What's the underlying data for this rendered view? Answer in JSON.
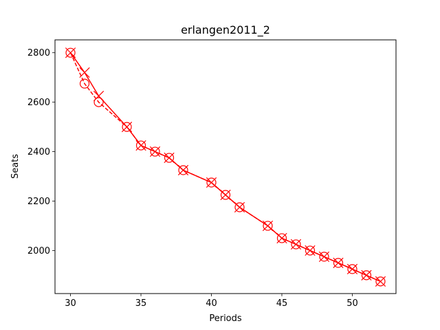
{
  "chart_data": {
    "type": "line",
    "title": "erlangen2011_2",
    "xlabel": "Periods",
    "ylabel": "Seats",
    "xlim": [
      28.9,
      53.1
    ],
    "ylim": [
      1826,
      2852
    ],
    "xticks": [
      30,
      35,
      40,
      45,
      50
    ],
    "yticks": [
      2000,
      2200,
      2400,
      2600,
      2800
    ],
    "grid": false,
    "legend": false,
    "color": "#ff0000",
    "series": [
      {
        "style": "solid",
        "marker": "x",
        "x": [
          30,
          31,
          32,
          34,
          35,
          36,
          37,
          38,
          40,
          41,
          42,
          44,
          45,
          46,
          47,
          48,
          49,
          50,
          51,
          52
        ],
        "y": [
          2800,
          2720,
          2625,
          2500,
          2425,
          2400,
          2375,
          2325,
          2275,
          2225,
          2175,
          2100,
          2050,
          2025,
          2000,
          1975,
          1950,
          1925,
          1900,
          1875
        ]
      },
      {
        "style": "dashed",
        "marker": "circle",
        "x": [
          30,
          31,
          32,
          34,
          35,
          36,
          37,
          38,
          40,
          41,
          42,
          44,
          45,
          46,
          47,
          48,
          49,
          50,
          51,
          52
        ],
        "y": [
          2800,
          2675,
          2600,
          2500,
          2425,
          2400,
          2375,
          2325,
          2275,
          2225,
          2175,
          2100,
          2050,
          2025,
          2000,
          1975,
          1950,
          1925,
          1900,
          1875
        ]
      }
    ]
  }
}
